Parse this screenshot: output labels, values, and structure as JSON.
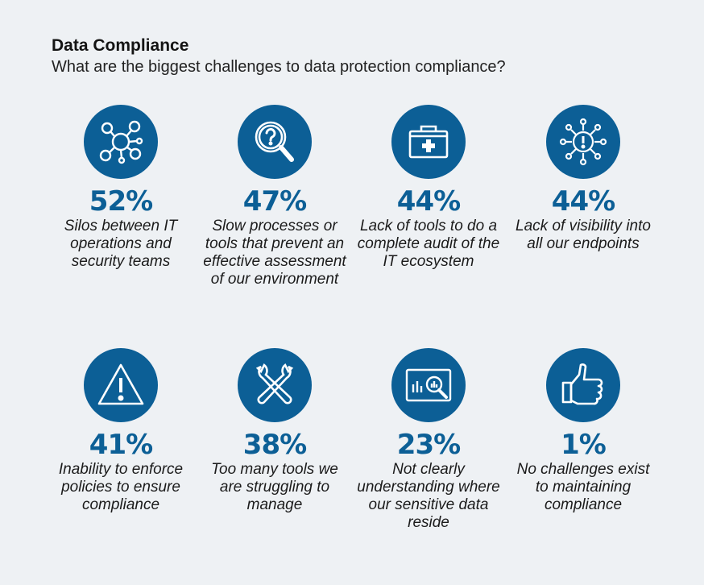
{
  "colors": {
    "accent": "#0c5f96",
    "background": "#eef1f4"
  },
  "header": {
    "title": "Data Compliance",
    "subtitle": "What are the biggest challenges to data protection compliance?"
  },
  "chart_data": {
    "type": "table",
    "title": "Data Compliance",
    "subtitle": "What are the biggest challenges to data protection compliance?",
    "items": [
      {
        "label": "52%",
        "value": 52,
        "text": "Silos between IT operations and security teams",
        "icon": "network-nodes-icon"
      },
      {
        "label": "47%",
        "value": 47,
        "text": "Slow processes or tools that prevent an effective assessment of our environment",
        "icon": "magnifier-question-icon"
      },
      {
        "label": "44%",
        "value": 44,
        "text": "Lack of tools to do a complete audit of the IT ecosystem",
        "icon": "toolbox-icon"
      },
      {
        "label": "44%",
        "value": 44,
        "text": "Lack of visibility into all our endpoints",
        "icon": "alert-network-icon"
      },
      {
        "label": "41%",
        "value": 41,
        "text": "Inability to enforce policies to ensure compliance",
        "icon": "warning-triangle-icon"
      },
      {
        "label": "38%",
        "value": 38,
        "text": "Too many tools we are struggling to manage",
        "icon": "crossed-wrenches-icon"
      },
      {
        "label": "23%",
        "value": 23,
        "text": "Not clearly understanding where our sensitive data reside",
        "icon": "chart-magnifier-icon"
      },
      {
        "label": "1%",
        "value": 1,
        "text": "No challenges exist to maintaining compliance",
        "icon": "thumbs-up-icon"
      }
    ]
  }
}
